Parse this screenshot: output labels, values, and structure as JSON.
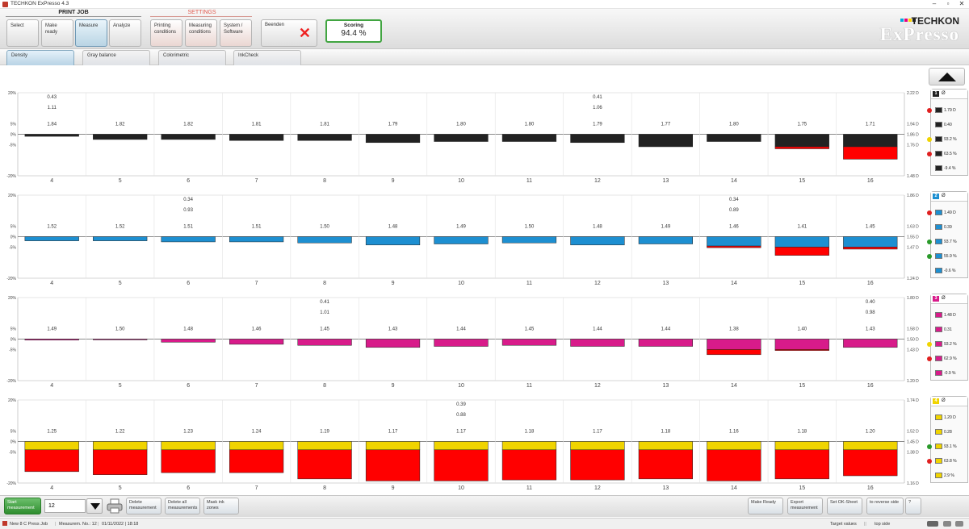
{
  "app": {
    "title": "TECHKON ExPresso 4.3"
  },
  "toolbar": {
    "print_job_label": "PRINT JOB",
    "settings_label": "SETTINGS",
    "buttons": [
      {
        "label": "Select",
        "active": false
      },
      {
        "label": "Make ready",
        "active": false
      },
      {
        "label": "Measure",
        "active": true
      },
      {
        "label": "Analyze",
        "active": false
      }
    ],
    "settings_buttons": [
      "Printing conditions",
      "Measuring conditions",
      "System / Software"
    ],
    "exit_label": "Beenden",
    "scoring_label": "Scoring",
    "scoring_value": "94.4 %"
  },
  "brand": {
    "name": "TECHKON",
    "product": "ExPresso",
    "colors": [
      "#00a7e0",
      "#e6007e",
      "#ffd500",
      "#222222"
    ]
  },
  "subtabs": [
    "Density",
    "Gray balance",
    "Colorimetric",
    "InkCheck"
  ],
  "active_subtab": "Density",
  "chart_data": [
    {
      "type": "bar",
      "ink": "1",
      "color": "#222222",
      "y_axis_left": [
        "20%",
        "5%",
        "0%",
        "-5%",
        "-20%"
      ],
      "y_axis_right": [
        "2.22 D",
        "1.94 D",
        "1.86 D",
        "1.76 D",
        "1.48 D"
      ],
      "zones": [
        "4",
        "5",
        "6",
        "7",
        "8",
        "9",
        "10",
        "11",
        "12",
        "13",
        "14",
        "15",
        "16"
      ],
      "density_values": [
        "1.84",
        "1.82",
        "1.82",
        "1.81",
        "1.81",
        "1.79",
        "1.80",
        "1.80",
        "1.79",
        "1.77",
        "1.80",
        "1.75",
        "1.71"
      ],
      "deviation_percent": [
        -1,
        -2.5,
        -2.5,
        -3,
        -3,
        -4,
        -3.5,
        -3.5,
        -4,
        -6,
        -3.5,
        -6,
        -6
      ],
      "red_excess_percent": [
        0,
        0,
        0,
        0,
        0,
        0,
        0,
        0,
        0,
        0,
        0,
        1,
        6
      ],
      "extra_values": [
        {
          "zone": 0,
          "lines": [
            "0.43",
            "1.11"
          ]
        },
        {
          "zone": 8,
          "lines": [
            "0.41",
            "1.06"
          ]
        }
      ]
    },
    {
      "type": "bar",
      "ink": "2",
      "color": "#1d8fd1",
      "y_axis_left": [
        "20%",
        "5%",
        "0%",
        "-5%",
        "-20%"
      ],
      "y_axis_right": [
        "1.86 D",
        "1.63 D",
        "1.55 D",
        "1.47 D",
        "1.24 D"
      ],
      "zones": [
        "4",
        "5",
        "6",
        "7",
        "8",
        "9",
        "10",
        "11",
        "12",
        "13",
        "14",
        "15",
        "16"
      ],
      "density_values": [
        "1.52",
        "1.52",
        "1.51",
        "1.51",
        "1.50",
        "1.48",
        "1.49",
        "1.50",
        "1.48",
        "1.49",
        "1.46",
        "1.41",
        "1.45"
      ],
      "deviation_percent": [
        -2,
        -2,
        -2.5,
        -2.5,
        -3,
        -4,
        -3.5,
        -3,
        -4,
        -3.5,
        -4.5,
        -5,
        -5
      ],
      "red_excess_percent": [
        0,
        0,
        0,
        0,
        0,
        0,
        0,
        0,
        0,
        0,
        0.8,
        4,
        1
      ],
      "extra_values": [
        {
          "zone": 2,
          "lines": [
            "0.34",
            "0.93"
          ]
        },
        {
          "zone": 10,
          "lines": [
            "0.34",
            "0.89"
          ]
        }
      ]
    },
    {
      "type": "bar",
      "ink": "3",
      "color": "#d81b8a",
      "y_axis_left": [
        "20%",
        "5%",
        "0%",
        "-5%",
        "-20%"
      ],
      "y_axis_right": [
        "1.80 D",
        "1.58 D",
        "1.50 D",
        "1.43 D",
        "1.20 D"
      ],
      "zones": [
        "4",
        "5",
        "6",
        "7",
        "8",
        "9",
        "10",
        "11",
        "12",
        "13",
        "14",
        "15",
        "16"
      ],
      "density_values": [
        "1.49",
        "1.50",
        "1.48",
        "1.46",
        "1.45",
        "1.43",
        "1.44",
        "1.45",
        "1.44",
        "1.44",
        "1.38",
        "1.40",
        "1.43"
      ],
      "deviation_percent": [
        -0.5,
        -0.3,
        -1.5,
        -2.5,
        -3,
        -4,
        -3.5,
        -3,
        -3.5,
        -3.5,
        -5,
        -5,
        -4
      ],
      "red_excess_percent": [
        0,
        0,
        0,
        0,
        0,
        0,
        0,
        0,
        0,
        0,
        2.5,
        0.5,
        0
      ],
      "extra_values": [
        {
          "zone": 4,
          "lines": [
            "0.41",
            "1.01"
          ]
        },
        {
          "zone": 12,
          "lines": [
            "0.40",
            "0.98"
          ]
        }
      ]
    },
    {
      "type": "bar",
      "ink": "4",
      "color": "#f0d400",
      "y_axis_left": [
        "20%",
        "5%",
        "0%",
        "-5%",
        "-20%"
      ],
      "y_axis_right": [
        "1.74 D",
        "1.52 D",
        "1.45 D",
        "1.38 D",
        "1.16 D"
      ],
      "zones": [
        "4",
        "5",
        "6",
        "7",
        "8",
        "9",
        "10",
        "11",
        "12",
        "13",
        "14",
        "15",
        "16"
      ],
      "density_values": [
        "1.25",
        "1.22",
        "1.23",
        "1.24",
        "1.19",
        "1.17",
        "1.17",
        "1.18",
        "1.17",
        "1.18",
        "1.16",
        "1.18",
        "1.20"
      ],
      "deviation_percent": [
        -4,
        -4,
        -4,
        -4,
        -4,
        -4,
        -4,
        -4,
        -4,
        -4,
        -4,
        -4,
        -4
      ],
      "red_excess_percent": [
        10.5,
        12,
        11,
        11,
        14,
        15,
        15,
        14.5,
        14.5,
        14,
        15,
        14,
        12.5
      ],
      "extra_values": [
        {
          "zone": 6,
          "lines": [
            "0.39",
            "0.88"
          ]
        }
      ]
    }
  ],
  "legend": [
    {
      "badge": "1",
      "badge_color": "#222222",
      "symbol": "Ø",
      "swatch": "#222222",
      "rows": [
        {
          "dot": "#e02020",
          "value": "1.79 D"
        },
        {
          "dot": null,
          "value": "0.40"
        },
        {
          "dot": "#f0d400",
          "value": "93.2 %"
        },
        {
          "dot": "#e02020",
          "value": "63.5 %"
        },
        {
          "dot": null,
          "value": "-9.4 %"
        }
      ]
    },
    {
      "badge": "2",
      "badge_color": "#1d8fd1",
      "symbol": "Ø",
      "swatch": "#1d8fd1",
      "rows": [
        {
          "dot": "#e02020",
          "value": "1.49 D"
        },
        {
          "dot": null,
          "value": "0.39"
        },
        {
          "dot": "#2a9a2a",
          "value": "93.7 %"
        },
        {
          "dot": "#2a9a2a",
          "value": "55.9 %"
        },
        {
          "dot": null,
          "value": "-0.6 %"
        }
      ]
    },
    {
      "badge": "3",
      "badge_color": "#d81b8a",
      "symbol": "Ø",
      "swatch": "#d81b8a",
      "rows": [
        {
          "dot": null,
          "value": "1.48 D"
        },
        {
          "dot": null,
          "value": "0.31"
        },
        {
          "dot": "#f0d400",
          "value": "93.2 %"
        },
        {
          "dot": "#e02020",
          "value": "62.9 %"
        },
        {
          "dot": null,
          "value": "-0.9 %"
        }
      ]
    },
    {
      "badge": "4",
      "badge_color": "#f0d400",
      "symbol": "Ø",
      "swatch": "#f0d400",
      "rows": [
        {
          "dot": null,
          "value": "1.20 D"
        },
        {
          "dot": null,
          "value": "0.28"
        },
        {
          "dot": "#2a9a2a",
          "value": "93.1 %"
        },
        {
          "dot": "#e02020",
          "value": "63.8 %"
        },
        {
          "dot": null,
          "value": "2.9 %"
        }
      ]
    }
  ],
  "bottom": {
    "start_label": "Start measurement",
    "measurement_number": "12",
    "buttons": [
      "Delete measurement",
      "Delete all measurements",
      "Mask ink zones"
    ],
    "right_buttons": [
      "Make Ready",
      "Export measurement",
      "Set OK-Sheet",
      "to reverse side",
      "?"
    ]
  },
  "status": {
    "job": "New 8 C Press Job",
    "measurement": "Measurem. No.: 12",
    "datetime": "01/11/2022 | 18:18",
    "target": "Target values",
    "side": "top side"
  }
}
